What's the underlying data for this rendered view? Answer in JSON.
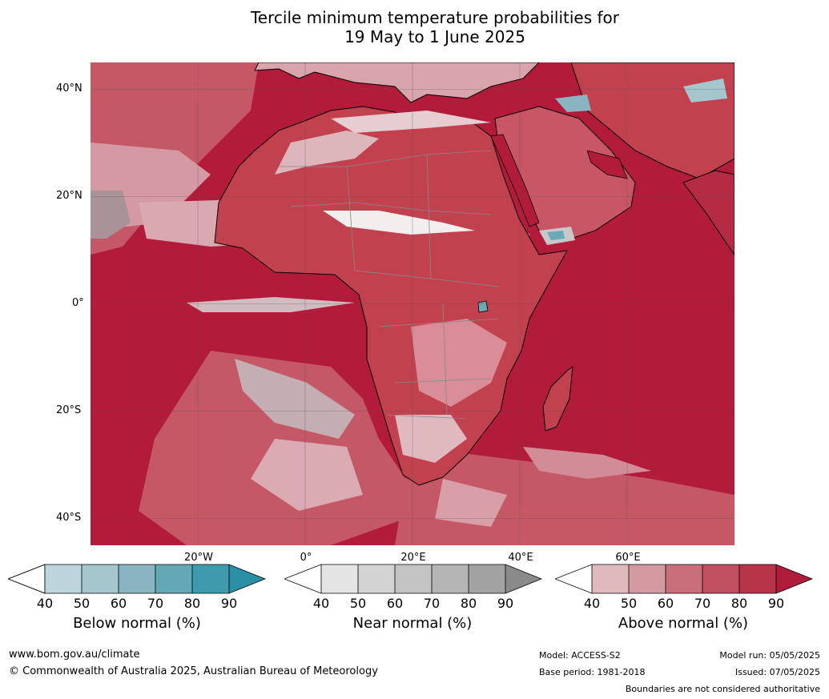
{
  "title": {
    "line1": "Tercile minimum temperature probabilities for",
    "line2": "19 May to 1 June 2025"
  },
  "map": {
    "region": "Africa",
    "lat_labels": [
      "40°N",
      "20°N",
      "0°",
      "20°S",
      "40°S"
    ],
    "lon_labels": [
      "20°W",
      "0°",
      "20°E",
      "40°E",
      "60°E"
    ],
    "lat_range": [
      -45,
      45
    ],
    "lon_range": [
      -40,
      80
    ],
    "ocean_color": "#b31b3b",
    "land_color": "#c2414f",
    "coastline_color": "#000000",
    "border_color": "#888888",
    "grid_color": "#555555"
  },
  "colorbars": [
    {
      "title": "Below normal (%)",
      "ticks": [
        "40",
        "50",
        "60",
        "70",
        "80",
        "90"
      ],
      "colors": [
        "#ffffff",
        "#bcd5dc",
        "#a5c6cd",
        "#88b5c1",
        "#65a8b5",
        "#3f9aad",
        "#2a8fa4"
      ]
    },
    {
      "title": "Near normal (%)",
      "ticks": [
        "40",
        "50",
        "60",
        "70",
        "80",
        "90"
      ],
      "colors": [
        "#ffffff",
        "#e4e4e4",
        "#d3d3d3",
        "#c3c3c3",
        "#b4b4b4",
        "#a2a2a2",
        "#8a8a8a"
      ]
    },
    {
      "title": "Above normal (%)",
      "ticks": [
        "40",
        "50",
        "60",
        "70",
        "80",
        "90"
      ],
      "colors": [
        "#ffffff",
        "#e0b9bf",
        "#d39aa2",
        "#c96e7b",
        "#c05060",
        "#b73449",
        "#b01d3b"
      ]
    }
  ],
  "footer": {
    "url": "www.bom.gov.au/climate",
    "copyright": "© Commonwealth of Australia 2025, Australian Bureau of Meteorology",
    "model": "Model: ACCESS-S2",
    "base_period": "Base period: 1981-2018",
    "model_run": "Model run: 05/05/2025",
    "issued": "Issued: 07/05/2025",
    "boundaries": "Boundaries are not considered authoritative"
  }
}
